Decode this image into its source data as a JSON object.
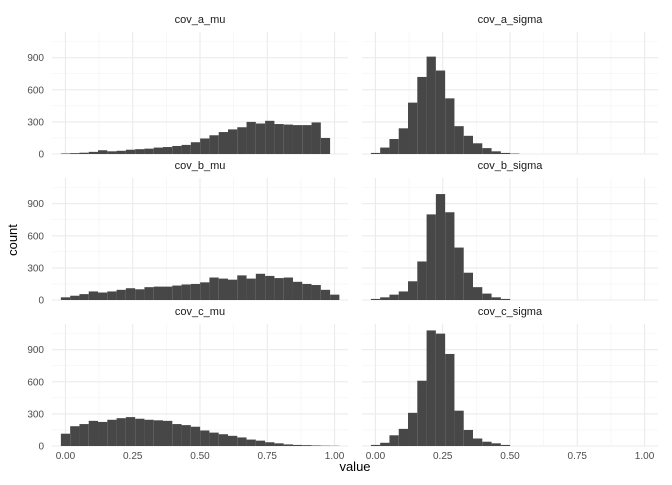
{
  "chart_data": {
    "type": "bar",
    "layout": "facet-grid",
    "xlabel": "value",
    "ylabel": "count",
    "x_ticks": [
      0.0,
      0.25,
      0.5,
      0.75,
      1.0
    ],
    "x_tick_labels": [
      "0.00",
      "0.25",
      "0.50",
      "0.75",
      "1.00"
    ],
    "xlim": [
      -0.05,
      1.05
    ],
    "y_ticks": [
      0,
      300,
      600,
      900
    ],
    "y_tick_labels": [
      "0",
      "300",
      "600",
      "900"
    ],
    "ylim": [
      0,
      1140
    ],
    "bin_width": 0.0345,
    "bar_color": "#474747",
    "grid_color": "#ebebeb",
    "facets": [
      {
        "title": "cov_a_mu",
        "bin_start": -0.017,
        "values": [
          5,
          8,
          12,
          20,
          35,
          25,
          30,
          40,
          45,
          50,
          60,
          65,
          75,
          85,
          110,
          145,
          175,
          205,
          230,
          250,
          300,
          285,
          310,
          280,
          275,
          270,
          270,
          295,
          150
        ]
      },
      {
        "title": "cov_a_sigma",
        "bin_start": -0.017,
        "values": [
          10,
          60,
          140,
          240,
          480,
          720,
          910,
          780,
          520,
          260,
          170,
          100,
          55,
          25,
          10,
          4
        ]
      },
      {
        "title": "cov_b_mu",
        "bin_start": -0.017,
        "values": [
          25,
          40,
          55,
          80,
          70,
          80,
          95,
          110,
          100,
          120,
          125,
          125,
          135,
          145,
          150,
          165,
          210,
          200,
          190,
          230,
          200,
          245,
          225,
          205,
          210,
          170,
          150,
          140,
          95,
          50
        ]
      },
      {
        "title": "cov_b_sigma",
        "bin_start": -0.017,
        "values": [
          10,
          25,
          50,
          80,
          175,
          360,
          800,
          990,
          820,
          490,
          255,
          120,
          60,
          25,
          10
        ]
      },
      {
        "title": "cov_c_mu",
        "bin_start": -0.017,
        "values": [
          115,
          185,
          205,
          235,
          225,
          245,
          260,
          270,
          255,
          245,
          240,
          235,
          205,
          195,
          180,
          145,
          125,
          110,
          95,
          80,
          60,
          50,
          35,
          25,
          15,
          10,
          8,
          5,
          3,
          2
        ]
      },
      {
        "title": "cov_c_sigma",
        "bin_start": -0.017,
        "values": [
          10,
          30,
          100,
          160,
          310,
          610,
          1080,
          1050,
          860,
          330,
          150,
          70,
          40,
          25,
          10
        ]
      }
    ]
  }
}
